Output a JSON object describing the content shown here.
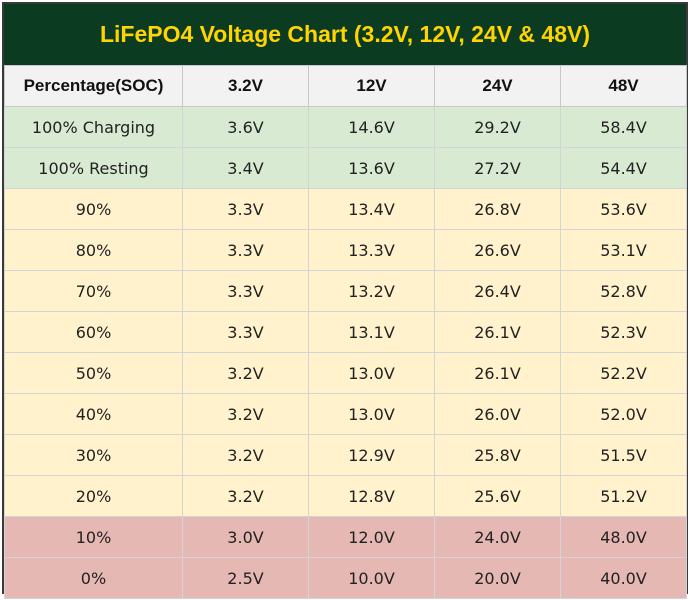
{
  "title": "LiFePO4 Voltage Chart (3.2V, 12V, 24V & 48V)",
  "colors": {
    "title_bg": "#0b3b20",
    "title_text": "#ffd400",
    "header_bg": "#f2f2f2",
    "full_bg": "#d9ead3",
    "mid_bg": "#fff2cc",
    "low_bg": "#e6b8b4"
  },
  "chart_data": {
    "type": "table",
    "title": "LiFePO4 Voltage Chart (3.2V, 12V, 24V & 48V)",
    "columns": [
      "Percentage(SOC)",
      "3.2V",
      "12V",
      "24V",
      "48V"
    ],
    "rows": [
      {
        "group": "full",
        "cells": [
          "100% Charging",
          "3.6V",
          "14.6V",
          "29.2V",
          "58.4V"
        ]
      },
      {
        "group": "full",
        "cells": [
          "100% Resting",
          "3.4V",
          "13.6V",
          "27.2V",
          "54.4V"
        ]
      },
      {
        "group": "mid",
        "cells": [
          "90%",
          "3.3V",
          "13.4V",
          "26.8V",
          "53.6V"
        ]
      },
      {
        "group": "mid",
        "cells": [
          "80%",
          "3.3V",
          "13.3V",
          "26.6V",
          "53.1V"
        ]
      },
      {
        "group": "mid",
        "cells": [
          "70%",
          "3.3V",
          "13.2V",
          "26.4V",
          "52.8V"
        ]
      },
      {
        "group": "mid",
        "cells": [
          "60%",
          "3.3V",
          "13.1V",
          "26.1V",
          "52.3V"
        ]
      },
      {
        "group": "mid",
        "cells": [
          "50%",
          "3.2V",
          "13.0V",
          "26.1V",
          "52.2V"
        ]
      },
      {
        "group": "mid",
        "cells": [
          "40%",
          "3.2V",
          "13.0V",
          "26.0V",
          "52.0V"
        ]
      },
      {
        "group": "mid",
        "cells": [
          "30%",
          "3.2V",
          "12.9V",
          "25.8V",
          "51.5V"
        ]
      },
      {
        "group": "mid",
        "cells": [
          "20%",
          "3.2V",
          "12.8V",
          "25.6V",
          "51.2V"
        ]
      },
      {
        "group": "low",
        "cells": [
          "10%",
          "3.0V",
          "12.0V",
          "24.0V",
          "48.0V"
        ]
      },
      {
        "group": "low",
        "cells": [
          "0%",
          "2.5V",
          "10.0V",
          "20.0V",
          "40.0V"
        ]
      }
    ]
  }
}
